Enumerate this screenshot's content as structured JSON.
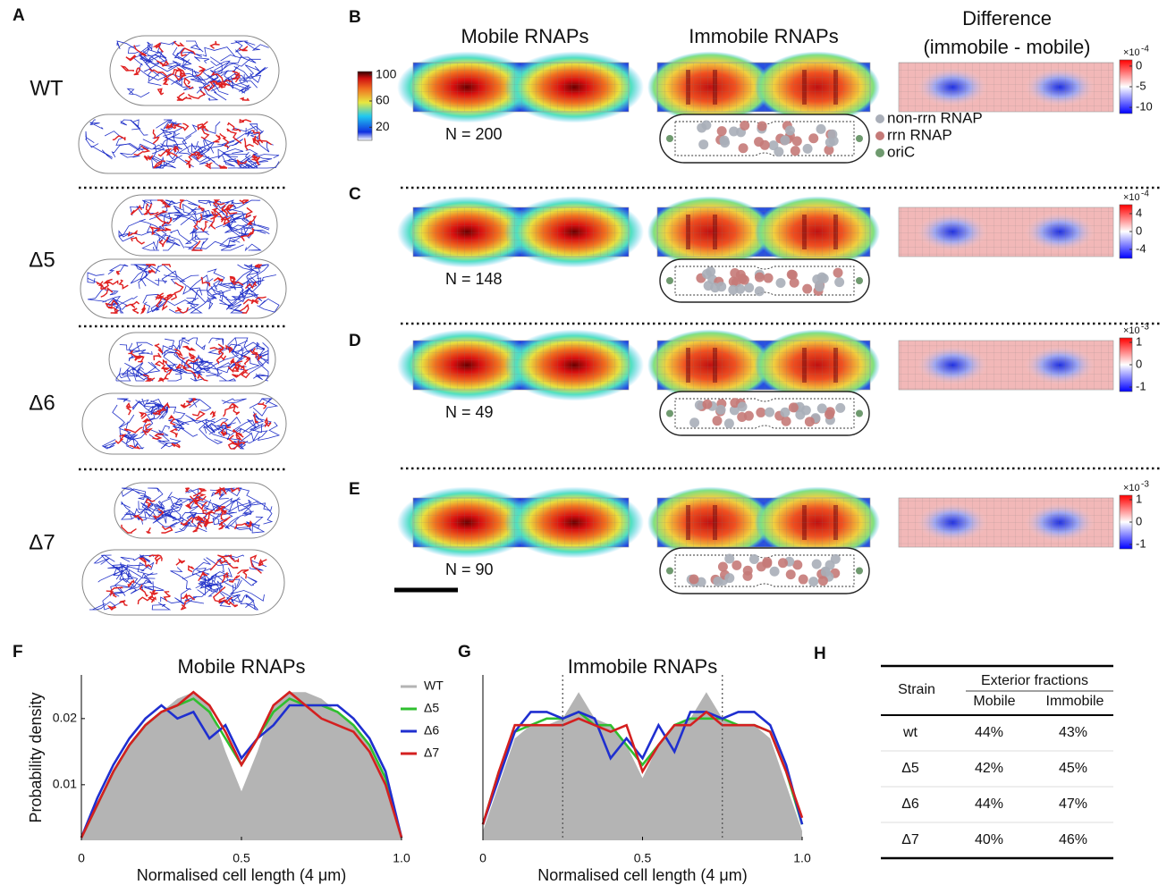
{
  "panel_labels": [
    "A",
    "B",
    "C",
    "D",
    "E",
    "F",
    "G",
    "H"
  ],
  "strains": [
    "WT",
    "Δ5",
    "Δ6",
    "Δ7"
  ],
  "heatmaps": {
    "columns": [
      "Mobile RNAPs",
      "Immobile RNAPs",
      "Difference",
      "(immobile - mobile)"
    ],
    "colorbar": {
      "ticks": [
        100,
        60,
        20
      ],
      "clim": [
        0,
        105
      ]
    },
    "rows": [
      {
        "n_label": "N = 200",
        "diff_colorbar": {
          "ticks": [
            0,
            -5,
            -10
          ],
          "clim": [
            -11.5,
            1.5
          ],
          "base": "×10",
          "exponent": "-4"
        }
      },
      {
        "n_label": "N = 148",
        "diff_colorbar": {
          "ticks": [
            4,
            0,
            -4
          ],
          "clim": [
            -6,
            6
          ],
          "base": "×10",
          "exponent": "-4"
        }
      },
      {
        "n_label": "N = 49",
        "diff_colorbar": {
          "ticks": [
            1,
            0,
            -1
          ],
          "clim": [
            -1.2,
            1.2
          ],
          "base": "×10",
          "exponent": "-3"
        }
      },
      {
        "n_label": "N = 90",
        "diff_colorbar": {
          "ticks": [
            1,
            0,
            -1
          ],
          "clim": [
            -1.2,
            1.2
          ],
          "base": "×10",
          "exponent": "-3"
        }
      }
    ],
    "legend": [
      {
        "label": "non-rrn RNAP",
        "color": "#a9aeb8"
      },
      {
        "label": "rrn RNAP",
        "color": "#c57a78"
      },
      {
        "label": "oriC",
        "color": "#6f9a6f"
      }
    ]
  },
  "chart_data": [
    {
      "type": "line",
      "title": "Mobile RNAPs",
      "x_label": "Normalised cell length (4 μm)",
      "y_label": "Probability density",
      "x": [
        0,
        0.05,
        0.1,
        0.15,
        0.2,
        0.25,
        0.3,
        0.35,
        0.4,
        0.45,
        0.5,
        0.55,
        0.6,
        0.65,
        0.7,
        0.75,
        0.8,
        0.85,
        0.9,
        0.95,
        1
      ],
      "xlim": [
        0,
        1
      ],
      "ylim": [
        0.0016,
        0.0266
      ],
      "xticks": [
        0,
        0.5,
        {
          "value": 1,
          "label": "1.0"
        }
      ],
      "yticks": [
        0.01,
        0.02
      ],
      "legend": true,
      "series": [
        {
          "name": "WT",
          "color": "#b4b4b4",
          "area": true,
          "values": [
            0.002,
            0.007,
            0.012,
            0.016,
            0.019,
            0.021,
            0.023,
            0.024,
            0.022,
            0.015,
            0.009,
            0.015,
            0.022,
            0.024,
            0.024,
            0.023,
            0.021,
            0.019,
            0.016,
            0.011,
            0.002
          ]
        },
        {
          "name": "Δ5",
          "color": "#2fbf2f",
          "values": [
            0.002,
            0.007,
            0.012,
            0.016,
            0.019,
            0.021,
            0.022,
            0.023,
            0.021,
            0.017,
            0.013,
            0.017,
            0.021,
            0.023,
            0.022,
            0.022,
            0.021,
            0.019,
            0.016,
            0.011,
            0.002
          ]
        },
        {
          "name": "Δ6",
          "color": "#1f2fd0",
          "values": [
            0.002,
            0.008,
            0.013,
            0.017,
            0.02,
            0.022,
            0.02,
            0.021,
            0.017,
            0.019,
            0.014,
            0.017,
            0.019,
            0.022,
            0.022,
            0.022,
            0.022,
            0.02,
            0.017,
            0.012,
            0.002
          ]
        },
        {
          "name": "Δ7",
          "color": "#d42020",
          "values": [
            0.002,
            0.007,
            0.012,
            0.016,
            0.019,
            0.021,
            0.022,
            0.024,
            0.022,
            0.018,
            0.013,
            0.017,
            0.022,
            0.024,
            0.022,
            0.02,
            0.019,
            0.018,
            0.015,
            0.01,
            0.002
          ]
        }
      ]
    },
    {
      "type": "line",
      "title": "Immobile RNAPs",
      "x_label": "Normalised cell length (4 μm)",
      "x": [
        0,
        0.05,
        0.1,
        0.15,
        0.2,
        0.25,
        0.3,
        0.35,
        0.4,
        0.45,
        0.5,
        0.55,
        0.6,
        0.65,
        0.7,
        0.75,
        0.8,
        0.85,
        0.9,
        0.95,
        1
      ],
      "xlim": [
        0,
        1
      ],
      "ylim": [
        0.0016,
        0.0266
      ],
      "xticks": [
        0,
        0.5,
        {
          "value": 1,
          "label": "1.0"
        }
      ],
      "vlines": [
        0.25,
        0.75
      ],
      "legend": false,
      "series": [
        {
          "name": "WT",
          "color": "#b4b4b4",
          "area": true,
          "values": [
            0.003,
            0.01,
            0.017,
            0.019,
            0.019,
            0.02,
            0.024,
            0.02,
            0.019,
            0.016,
            0.011,
            0.016,
            0.019,
            0.02,
            0.024,
            0.02,
            0.019,
            0.019,
            0.017,
            0.01,
            0.003
          ]
        },
        {
          "name": "Δ5",
          "color": "#2fbf2f",
          "values": [
            0.004,
            0.012,
            0.018,
            0.019,
            0.02,
            0.02,
            0.021,
            0.019,
            0.019,
            0.016,
            0.013,
            0.016,
            0.019,
            0.02,
            0.02,
            0.02,
            0.019,
            0.019,
            0.018,
            0.012,
            0.004
          ]
        },
        {
          "name": "Δ6",
          "color": "#1f2fd0",
          "values": [
            0.004,
            0.011,
            0.018,
            0.021,
            0.021,
            0.02,
            0.021,
            0.02,
            0.014,
            0.017,
            0.014,
            0.019,
            0.015,
            0.021,
            0.021,
            0.02,
            0.021,
            0.021,
            0.019,
            0.013,
            0.004
          ]
        },
        {
          "name": "Δ7",
          "color": "#d42020",
          "values": [
            0.004,
            0.012,
            0.019,
            0.019,
            0.019,
            0.019,
            0.02,
            0.019,
            0.018,
            0.019,
            0.012,
            0.016,
            0.019,
            0.019,
            0.021,
            0.019,
            0.019,
            0.019,
            0.018,
            0.012,
            0.005
          ]
        }
      ]
    }
  ],
  "table": {
    "header": [
      "Strain",
      "Exterior fractions",
      "Mobile",
      "Immobile"
    ],
    "rows": [
      [
        "wt",
        "44%",
        "43%"
      ],
      [
        "Δ5",
        "42%",
        "45%"
      ],
      [
        "Δ6",
        "44%",
        "47%"
      ],
      [
        "Δ7",
        "40%",
        "46%"
      ]
    ]
  }
}
